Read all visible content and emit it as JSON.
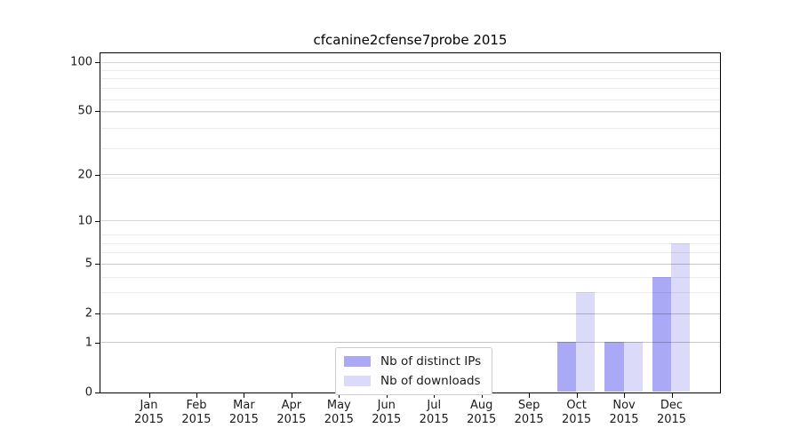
{
  "chart_data": {
    "type": "bar",
    "title": "cfcanine2cfense7probe 2015",
    "categories": [
      "Jan",
      "Feb",
      "Mar",
      "Apr",
      "May",
      "Jun",
      "Jul",
      "Aug",
      "Sep",
      "Oct",
      "Nov",
      "Dec"
    ],
    "category_year": "2015",
    "series": [
      {
        "name": "Nb of distinct IPs",
        "color": "#a9a9f6",
        "values": [
          0,
          0,
          0,
          0,
          0,
          0,
          0,
          0,
          0,
          1,
          1,
          4
        ]
      },
      {
        "name": "Nb of downloads",
        "color": "#dbdbf9",
        "values": [
          0,
          0,
          0,
          0,
          0,
          0,
          0,
          0,
          0,
          3,
          1,
          7
        ]
      }
    ],
    "y_scale": "log(1+v)",
    "y_ticks": [
      0,
      1,
      2,
      5,
      10,
      20,
      50,
      100
    ],
    "y_minor_gridline_values": [
      1,
      2,
      3,
      4,
      5,
      6,
      7,
      8,
      19,
      29,
      39,
      49,
      59,
      69,
      79,
      89
    ],
    "ylim": [
      0,
      113
    ],
    "xlabel": "",
    "ylabel": "",
    "grid": "horizontal",
    "legend_position": "lower center"
  }
}
